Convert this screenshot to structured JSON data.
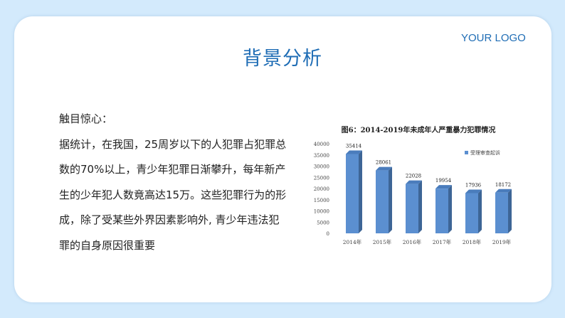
{
  "header": {
    "logo": "YOUR LOGO",
    "title": "背景分析"
  },
  "text": {
    "heading": "触目惊心：",
    "paragraph": "据统计，在我国，25周岁以下的人犯罪占犯罪总数的70%以上，青少年犯罪日渐攀升，每年新产生的少年犯人数竟高达15万。这些犯罪行为的形成，除了受某些外界因素影响外, 青少年违法犯罪的自身原因很重要"
  },
  "chart_data": {
    "type": "bar",
    "title": "图6：2014-2019年未成年人严重暴力犯罪情况",
    "categories": [
      "2014年",
      "2015年",
      "2016年",
      "2017年",
      "2018年",
      "2019年"
    ],
    "series": [
      {
        "name": "受理审查起诉",
        "values": [
          35414,
          28061,
          22028,
          19954,
          17936,
          18172
        ]
      }
    ],
    "ylim": [
      0,
      40000
    ],
    "yticks": [
      0,
      5000,
      10000,
      15000,
      20000,
      25000,
      30000,
      35000,
      40000
    ],
    "legend": "top-right",
    "grid": false,
    "bar_color": "#5b8fd0",
    "bar_side_color": "#3d6596"
  }
}
